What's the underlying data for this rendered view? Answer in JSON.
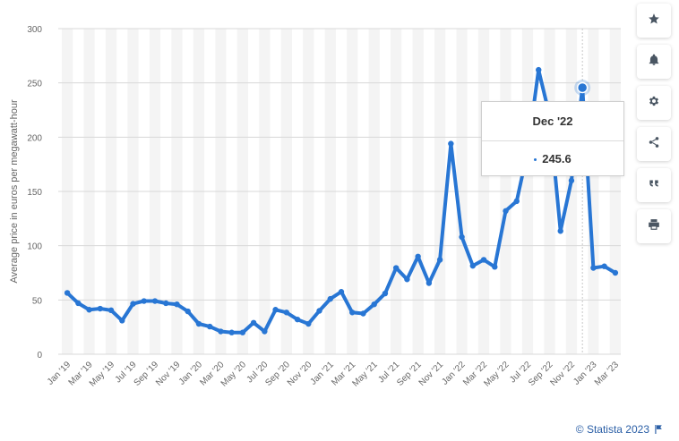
{
  "chart_data": {
    "type": "line",
    "title": "",
    "xlabel": "",
    "ylabel": "Average price in euros per megawatt-hour",
    "ylim": [
      0,
      300
    ],
    "yticks": [
      0,
      50,
      100,
      150,
      200,
      250,
      300
    ],
    "grid": true,
    "legend": "none",
    "x": [
      "Jan '19",
      "Feb '19",
      "Mar '19",
      "Apr '19",
      "May '19",
      "Jun '19",
      "Jul '19",
      "Aug '19",
      "Sep '19",
      "Oct '19",
      "Nov '19",
      "Dec '19",
      "Jan '20",
      "Feb '20",
      "Mar '20",
      "Apr '20",
      "May '20",
      "Jun '20",
      "Jul '20",
      "Aug '20",
      "Sep '20",
      "Oct '20",
      "Nov '20",
      "Dec '20",
      "Jan '21",
      "Feb '21",
      "Mar '21",
      "Apr '21",
      "May '21",
      "Jun '21",
      "Jul '21",
      "Aug '21",
      "Sep '21",
      "Oct '21",
      "Nov '21",
      "Dec '21",
      "Jan '22",
      "Feb '22",
      "Mar '22",
      "Apr '22",
      "May '22",
      "Jun '22",
      "Jul '22",
      "Aug '22",
      "Sep '22",
      "Oct '22",
      "Nov '22",
      "Dec '22",
      "Jan '23",
      "Feb '23",
      "Mar '23"
    ],
    "xtick_labels": [
      "Jan '19",
      "Mar '19",
      "May '19",
      "Jul '19",
      "Sep '19",
      "Nov '19",
      "Jan '20",
      "Mar '20",
      "May '20",
      "Jul '20",
      "Sep '20",
      "Nov '20",
      "Jan '21",
      "Mar '21",
      "May '21",
      "Jul '21",
      "Sep '21",
      "Nov '21",
      "Jan '22",
      "Mar '22",
      "May '22",
      "Jul '22",
      "Sep '22",
      "Nov '22",
      "Jan '23",
      "Mar '23"
    ],
    "series": [
      {
        "values": [
          56.5,
          47,
          41,
          42,
          40.5,
          31,
          46.5,
          49,
          49,
          47,
          46,
          39.5,
          28,
          25.5,
          21,
          20,
          20,
          29,
          21,
          41,
          38.5,
          32,
          28,
          40,
          51,
          57.5,
          38.5,
          37.5,
          46,
          56,
          79.5,
          69,
          90,
          65.5,
          87,
          194,
          108,
          81.5,
          87,
          80.5,
          132,
          141,
          187,
          262,
          220,
          113.5,
          160,
          245.6,
          79.5,
          81,
          75
        ],
        "color": "#2876d4"
      }
    ],
    "highlight": {
      "x": "Dec '22",
      "value": "245.6"
    }
  },
  "tooltip": {
    "title": "Dec '22",
    "value": "245.6"
  },
  "tools": [
    {
      "icon": "star-icon"
    },
    {
      "icon": "bell-icon"
    },
    {
      "icon": "gear-icon"
    },
    {
      "icon": "share-icon"
    },
    {
      "icon": "quote-icon"
    },
    {
      "icon": "print-icon"
    }
  ],
  "footer": {
    "copyright": "© Statista 2023",
    "icon": "flag-icon"
  },
  "colors": {
    "line": "#2876d4",
    "band": "#f4f4f4",
    "grid": "#d8d8d8",
    "link": "#2b5fa6"
  }
}
